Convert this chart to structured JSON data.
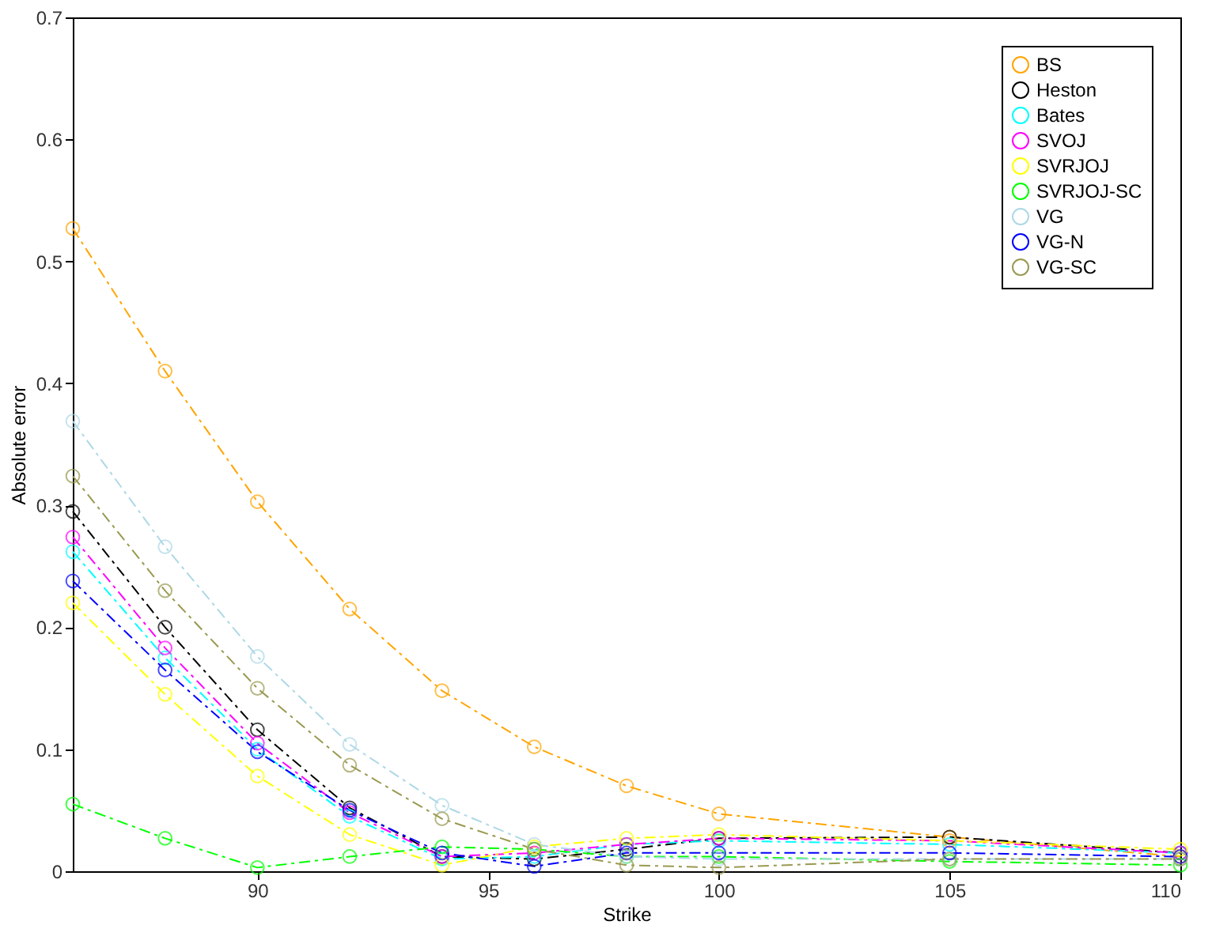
{
  "chart_data": {
    "type": "line",
    "xlabel": "Strike",
    "ylabel": "Absolute error",
    "x": [
      86,
      88,
      90,
      92,
      94,
      96,
      98,
      100,
      105,
      110
    ],
    "xlim": [
      86,
      110
    ],
    "xticks": [
      90,
      95,
      100,
      105,
      110
    ],
    "ylim": [
      0,
      0.7
    ],
    "yticks": [
      0,
      0.1,
      0.2,
      0.3,
      0.4,
      0.5,
      0.6,
      0.7
    ],
    "grid": false,
    "legend": "top right",
    "marker": "circle",
    "line_style": "dashed",
    "series": [
      {
        "name": "BS",
        "color": "#ffa500",
        "values": [
          0.527,
          0.41,
          0.303,
          0.215,
          0.148,
          0.102,
          0.07,
          0.047,
          0.028,
          0.012
        ]
      },
      {
        "name": "Heston",
        "color": "#000000",
        "values": [
          0.295,
          0.2,
          0.116,
          0.052,
          0.012,
          0.01,
          0.018,
          0.027,
          0.028,
          0.015
        ]
      },
      {
        "name": "Bates",
        "color": "#00ffff",
        "values": [
          0.262,
          0.175,
          0.1,
          0.045,
          0.01,
          0.012,
          0.022,
          0.025,
          0.022,
          0.015
        ]
      },
      {
        "name": "SVOJ",
        "color": "#ff00ff",
        "values": [
          0.274,
          0.183,
          0.105,
          0.048,
          0.012,
          0.015,
          0.022,
          0.027,
          0.025,
          0.015
        ]
      },
      {
        "name": "SVRJOJ",
        "color": "#ffff00",
        "values": [
          0.22,
          0.145,
          0.078,
          0.03,
          0.005,
          0.02,
          0.027,
          0.03,
          0.025,
          0.018
        ]
      },
      {
        "name": "SVRJOJ-SC",
        "color": "#00ff00",
        "values": [
          0.055,
          0.027,
          0.003,
          0.012,
          0.02,
          0.018,
          0.012,
          0.012,
          0.008,
          0.005
        ]
      },
      {
        "name": "VG",
        "color": "#add8e6",
        "values": [
          0.369,
          0.266,
          0.176,
          0.104,
          0.054,
          0.022,
          0.012,
          0.01,
          0.01,
          0.01
        ]
      },
      {
        "name": "VG-N",
        "color": "#0000ff",
        "values": [
          0.238,
          0.165,
          0.098,
          0.05,
          0.015,
          0.004,
          0.015,
          0.015,
          0.015,
          0.012
        ]
      },
      {
        "name": "VG-SC",
        "color": "#999950",
        "values": [
          0.324,
          0.23,
          0.15,
          0.087,
          0.043,
          0.018,
          0.005,
          0.003,
          0.01,
          0.01
        ]
      }
    ]
  }
}
